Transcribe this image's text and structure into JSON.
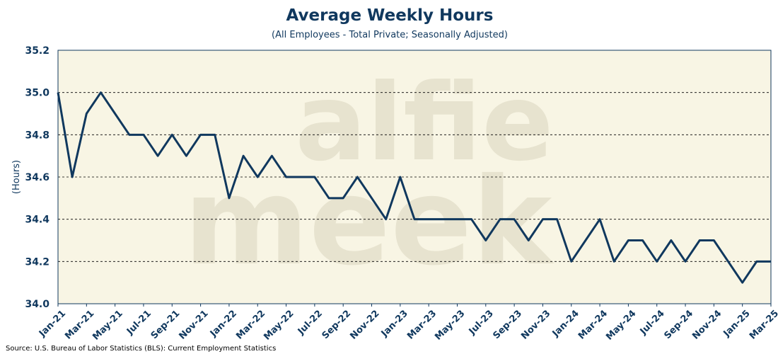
{
  "chart_data": {
    "type": "line",
    "title": "Average Weekly Hours",
    "subtitle": "(All Employees - Total Private; Seasonally Adjusted)",
    "ylabel": "(Hours)",
    "ylim": [
      34.0,
      35.2
    ],
    "yticks": [
      "34.0",
      "34.2",
      "34.4",
      "34.6",
      "34.8",
      "35.0",
      "35.2"
    ],
    "grid": "horizontal dashed",
    "x": [
      "Jan-21",
      "Feb-21",
      "Mar-21",
      "Apr-21",
      "May-21",
      "Jun-21",
      "Jul-21",
      "Aug-21",
      "Sep-21",
      "Oct-21",
      "Nov-21",
      "Dec-21",
      "Jan-22",
      "Feb-22",
      "Mar-22",
      "Apr-22",
      "May-22",
      "Jun-22",
      "Jul-22",
      "Aug-22",
      "Sep-22",
      "Oct-22",
      "Nov-22",
      "Dec-22",
      "Jan-23",
      "Feb-23",
      "Mar-23",
      "Apr-23",
      "May-23",
      "Jun-23",
      "Jul-23",
      "Aug-23",
      "Sep-23",
      "Oct-23",
      "Nov-23",
      "Dec-23",
      "Jan-24",
      "Feb-24",
      "Mar-24",
      "Apr-24",
      "May-24",
      "Jun-24",
      "Jul-24",
      "Aug-24",
      "Sep-24",
      "Oct-24",
      "Nov-24",
      "Dec-24",
      "Jan-25",
      "Feb-25",
      "Mar-25"
    ],
    "xticks": [
      "Jan-21",
      "Mar-21",
      "May-21",
      "Jul-21",
      "Sep-21",
      "Nov-21",
      "Jan-22",
      "Mar-22",
      "May-22",
      "Jul-22",
      "Sep-22",
      "Nov-22",
      "Jan-23",
      "Mar-23",
      "May-23",
      "Jul-23",
      "Sep-23",
      "Nov-23",
      "Jan-24",
      "Mar-24",
      "May-24",
      "Jul-24",
      "Sep-24",
      "Nov-24",
      "Jan-25",
      "Mar-25"
    ],
    "series": [
      {
        "values": [
          35.0,
          34.6,
          34.9,
          35.0,
          34.9,
          34.8,
          34.8,
          34.7,
          34.8,
          34.7,
          34.8,
          34.8,
          34.5,
          34.7,
          34.6,
          34.7,
          34.6,
          34.6,
          34.6,
          34.5,
          34.5,
          34.6,
          34.5,
          34.4,
          34.6,
          34.4,
          34.4,
          34.4,
          34.4,
          34.4,
          34.3,
          34.4,
          34.4,
          34.3,
          34.4,
          34.4,
          34.2,
          34.3,
          34.4,
          34.2,
          34.3,
          34.3,
          34.2,
          34.3,
          34.2,
          34.3,
          34.3,
          34.2,
          34.1,
          34.2,
          34.2
        ],
        "color": "#10385e"
      }
    ],
    "source": "Source: U.S. Bureau of Labor Statistics (BLS): Current Employment Statistics",
    "watermark": [
      "alfie",
      "meek"
    ],
    "colors": {
      "plot_background": "#f8f5e4",
      "line": "#10385e",
      "text": "#10385e"
    }
  }
}
